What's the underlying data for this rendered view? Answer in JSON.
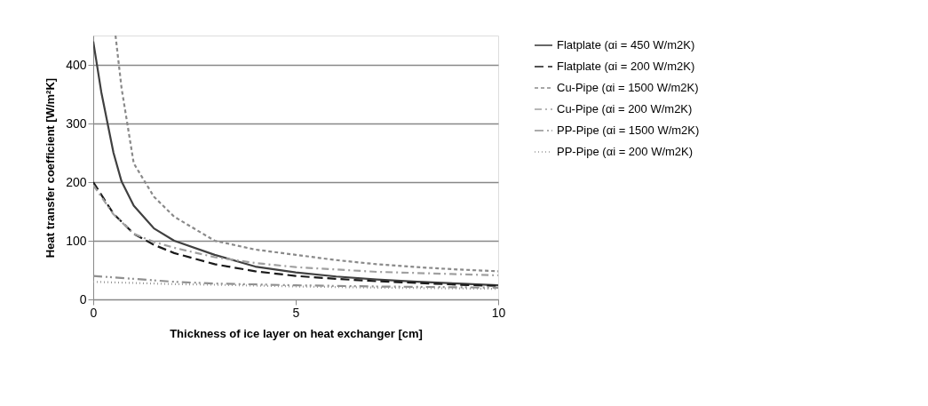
{
  "chart_data": {
    "type": "line",
    "xlabel": "Thickness of ice layer on heat exchanger [cm]",
    "ylabel": "Heat transfer coefficient [W/m²K]",
    "xlim": [
      0,
      10
    ],
    "xticks": [
      0,
      5,
      10
    ],
    "ylim": [
      0,
      450
    ],
    "yticks": [
      0,
      100,
      200,
      300,
      400
    ],
    "grid": "y",
    "legend": "right",
    "marker": "none",
    "series": [
      {
        "name": "Flatplate (αi = 450 W/m2K)",
        "color": "#404040",
        "line_style": "solid",
        "x": [
          0,
          0.2,
          0.5,
          0.7,
          1,
          1.5,
          2,
          3,
          4,
          5,
          6,
          7,
          8,
          9,
          10
        ],
        "values": [
          440,
          353,
          250,
          201,
          160,
          121,
          100,
          76,
          56,
          46,
          39,
          34,
          30,
          27,
          24
        ]
      },
      {
        "name": "Flatplate (αi = 200 W/m2K)",
        "color": "#1a1a1a",
        "line_style": "longdash",
        "x": [
          0,
          0.5,
          1,
          1.5,
          2,
          3,
          4,
          5,
          6,
          7,
          8,
          9,
          10
        ],
        "values": [
          200,
          146,
          112,
          93,
          79,
          60,
          48,
          40,
          35,
          31,
          28,
          25,
          23
        ]
      },
      {
        "name": "Cu-Pipe (αi = 1500 W/m2K)",
        "color": "#8a8a8a",
        "line_style": "dashed",
        "x": [
          0.55,
          0.7,
          1,
          1.5,
          2,
          3,
          4,
          5,
          6,
          7,
          8,
          9,
          10
        ],
        "values": [
          450,
          360,
          232,
          175,
          141,
          100,
          85,
          76,
          67,
          60,
          55,
          51,
          48
        ]
      },
      {
        "name": "Cu-Pipe (αi = 200 W/m2K)",
        "color": "#a0a0a0",
        "line_style": "dashdot",
        "x": [
          0,
          0.5,
          1,
          1.5,
          2,
          3,
          4,
          5,
          6,
          7,
          8,
          9,
          10
        ],
        "values": [
          195,
          145,
          112,
          98,
          88,
          72,
          62,
          55,
          51,
          47,
          45,
          43,
          41
        ]
      },
      {
        "name": "PP-Pipe (αi = 1500 W/m2K)",
        "color": "#909090",
        "line_style": "dashdotdot",
        "x": [
          0,
          1,
          2,
          3,
          5,
          7,
          10
        ],
        "values": [
          40,
          35,
          30,
          27,
          24,
          22,
          20
        ]
      },
      {
        "name": "PP-Pipe (αi = 200 W/m2K)",
        "color": "#999999",
        "line_style": "dotted",
        "x": [
          0,
          1,
          2,
          3,
          5,
          7,
          10
        ],
        "values": [
          30,
          28,
          26,
          25,
          22,
          20,
          18
        ]
      }
    ]
  }
}
